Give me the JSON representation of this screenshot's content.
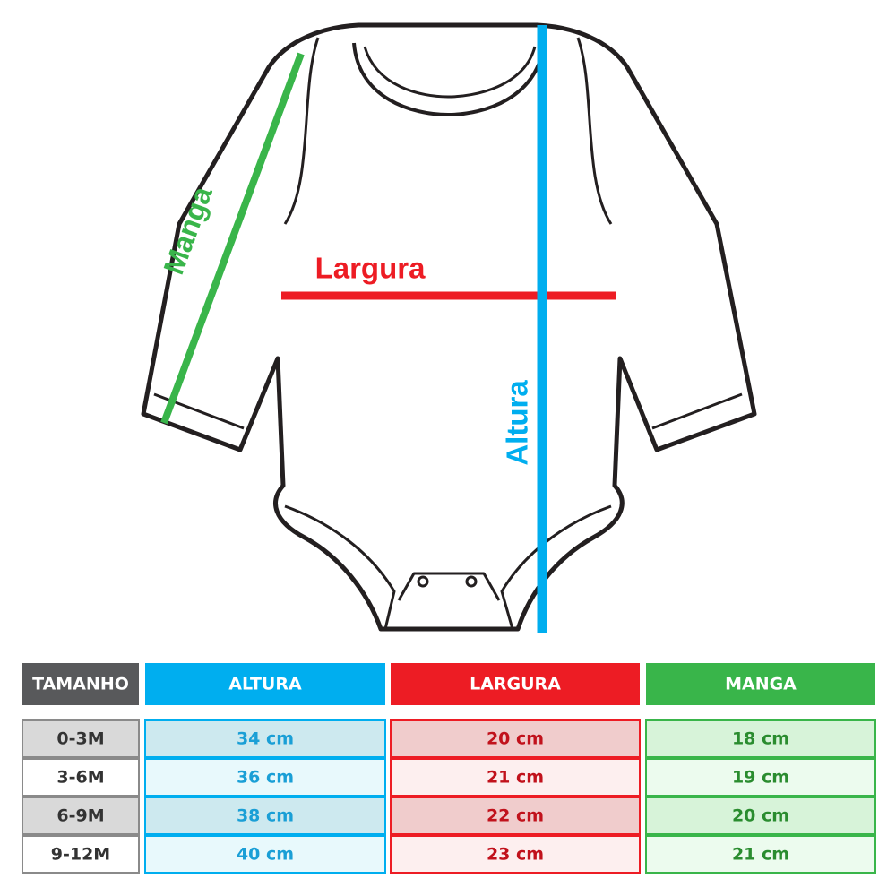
{
  "labels": {
    "sleeve": "Manga",
    "width": "Largura",
    "height": "Altura"
  },
  "table": {
    "header": [
      "TAMANHO",
      "ALTURA",
      "LARGURA",
      "MANGA"
    ],
    "rows": [
      [
        "0-3M",
        "34 cm",
        "20 cm",
        "18 cm"
      ],
      [
        "3-6M",
        "36 cm",
        "21 cm",
        "19 cm"
      ],
      [
        "6-9M",
        "38 cm",
        "22 cm",
        "20 cm"
      ],
      [
        "9-12M",
        "40 cm",
        "23 cm",
        "21 cm"
      ]
    ]
  }
}
